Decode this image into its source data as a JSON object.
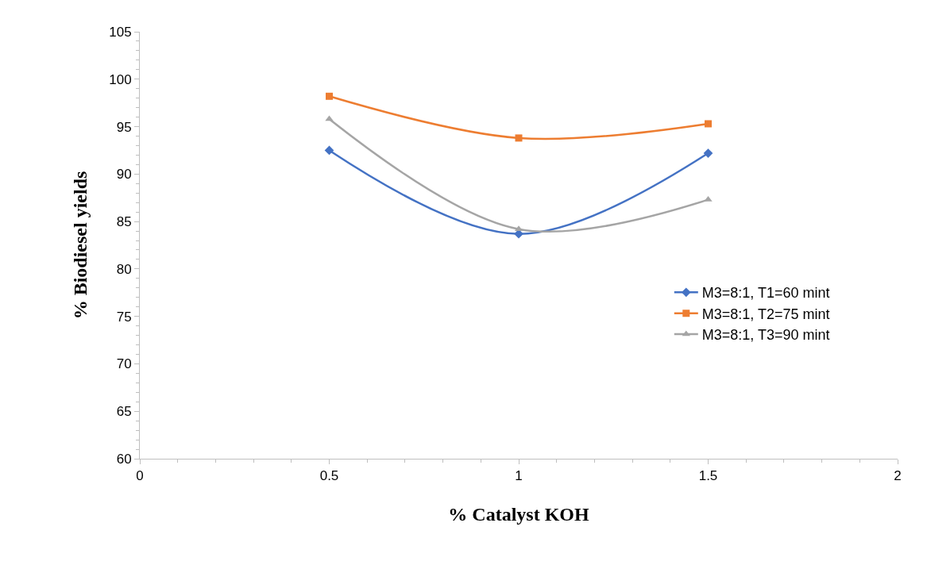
{
  "chart_data": {
    "type": "line",
    "xlabel": "% Catalyst KOH",
    "ylabel": "% Biodiesel yields",
    "x": [
      0.5,
      1,
      1.5
    ],
    "series": [
      {
        "name": "M3=8:1, T1=60 mint",
        "color": "#4472c4",
        "marker": "diamond",
        "values": [
          92.5,
          83.7,
          92.2
        ]
      },
      {
        "name": "M3=8:1, T2=75 mint",
        "color": "#ed7d31",
        "marker": "square",
        "values": [
          98.2,
          93.8,
          95.3
        ]
      },
      {
        "name": "M3=8:1, T3=90 mint",
        "color": "#a5a5a5",
        "marker": "triangle",
        "values": [
          95.8,
          84.2,
          87.3
        ]
      }
    ],
    "xlim": [
      0,
      2
    ],
    "xticks": [
      0,
      0.5,
      1,
      1.5,
      2
    ],
    "ylim": [
      60,
      105
    ],
    "yticks": [
      60,
      65,
      70,
      75,
      80,
      85,
      90,
      95,
      100,
      105
    ],
    "legend": "right"
  }
}
